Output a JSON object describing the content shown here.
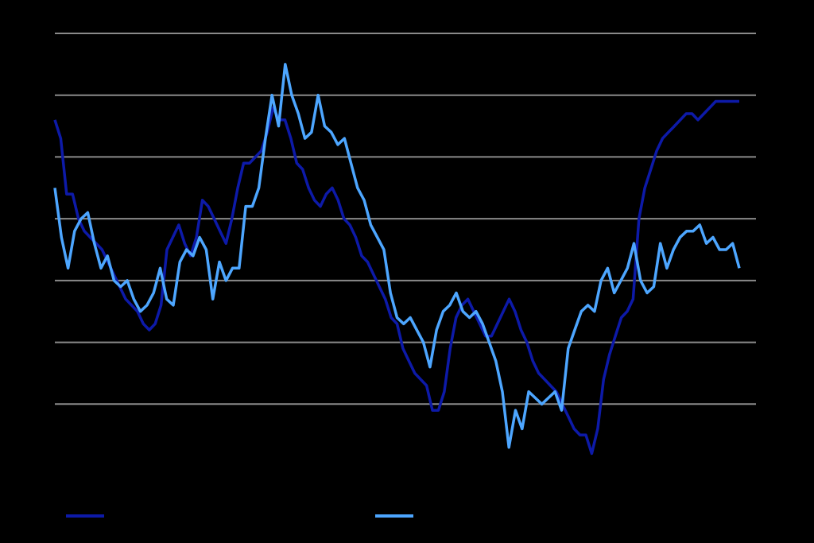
{
  "chart_data": {
    "type": "line",
    "title": "",
    "xlabel": "",
    "ylabel": "",
    "ylim": [
      0,
      7
    ],
    "gridlines": [
      1,
      2,
      3,
      4,
      5,
      6,
      7
    ],
    "grid": true,
    "legend_position": "bottom",
    "colors": {
      "background": "#000000",
      "grid": "#8a8a8a"
    },
    "series": [
      {
        "color": "#0d1aa8",
        "values": [
          5.6,
          5.3,
          4.4,
          4.4,
          4.0,
          3.8,
          3.7,
          3.6,
          3.5,
          3.3,
          3.1,
          2.9,
          2.7,
          2.6,
          2.5,
          2.3,
          2.2,
          2.3,
          2.6,
          3.5,
          3.7,
          3.9,
          3.6,
          3.4,
          3.7,
          4.3,
          4.2,
          4.0,
          3.8,
          3.6,
          4.0,
          4.5,
          4.9,
          4.9,
          5.0,
          5.1,
          5.4,
          5.8,
          5.6,
          5.6,
          5.3,
          4.9,
          4.8,
          4.5,
          4.3,
          4.2,
          4.4,
          4.5,
          4.3,
          4.0,
          3.9,
          3.7,
          3.4,
          3.3,
          3.1,
          2.9,
          2.7,
          2.4,
          2.3,
          1.9,
          1.7,
          1.5,
          1.4,
          1.3,
          0.9,
          0.9,
          1.2,
          1.9,
          2.4,
          2.6,
          2.7,
          2.5,
          2.3,
          2.1,
          2.1,
          2.3,
          2.5,
          2.7,
          2.5,
          2.2,
          2.0,
          1.7,
          1.5,
          1.4,
          1.3,
          1.2,
          1.0,
          0.8,
          0.6,
          0.5,
          0.5,
          0.2,
          0.6,
          1.4,
          1.8,
          2.1,
          2.4,
          2.5,
          2.7,
          4.0,
          4.5,
          4.8,
          5.1,
          5.3,
          5.4,
          5.5,
          5.6,
          5.7,
          5.7,
          5.6,
          5.7,
          5.8,
          5.9,
          5.9,
          5.9,
          5.9,
          5.9
        ]
      },
      {
        "color": "#4da6ff",
        "values": [
          4.5,
          3.7,
          3.2,
          3.8,
          4.0,
          4.1,
          3.6,
          3.2,
          3.4,
          3.0,
          2.9,
          3.0,
          2.7,
          2.5,
          2.6,
          2.8,
          3.2,
          2.7,
          2.6,
          3.3,
          3.5,
          3.4,
          3.7,
          3.5,
          2.7,
          3.3,
          3.0,
          3.2,
          3.2,
          4.2,
          4.2,
          4.5,
          5.3,
          6.0,
          5.5,
          6.5,
          6.0,
          5.7,
          5.3,
          5.4,
          6.0,
          5.5,
          5.4,
          5.2,
          5.3,
          4.9,
          4.5,
          4.3,
          3.9,
          3.7,
          3.5,
          2.8,
          2.4,
          2.3,
          2.4,
          2.2,
          2.0,
          1.6,
          2.2,
          2.5,
          2.6,
          2.8,
          2.5,
          2.4,
          2.5,
          2.3,
          2.0,
          1.7,
          1.2,
          0.3,
          0.9,
          0.6,
          1.2,
          1.1,
          1.0,
          1.1,
          1.2,
          0.9,
          1.9,
          2.2,
          2.5,
          2.6,
          2.5,
          3.0,
          3.2,
          2.8,
          3.0,
          3.2,
          3.6,
          3.0,
          2.8,
          2.9,
          3.6,
          3.2,
          3.5,
          3.7,
          3.8,
          3.8,
          3.9,
          3.6,
          3.7,
          3.5,
          3.5,
          3.6,
          3.2
        ]
      }
    ]
  }
}
